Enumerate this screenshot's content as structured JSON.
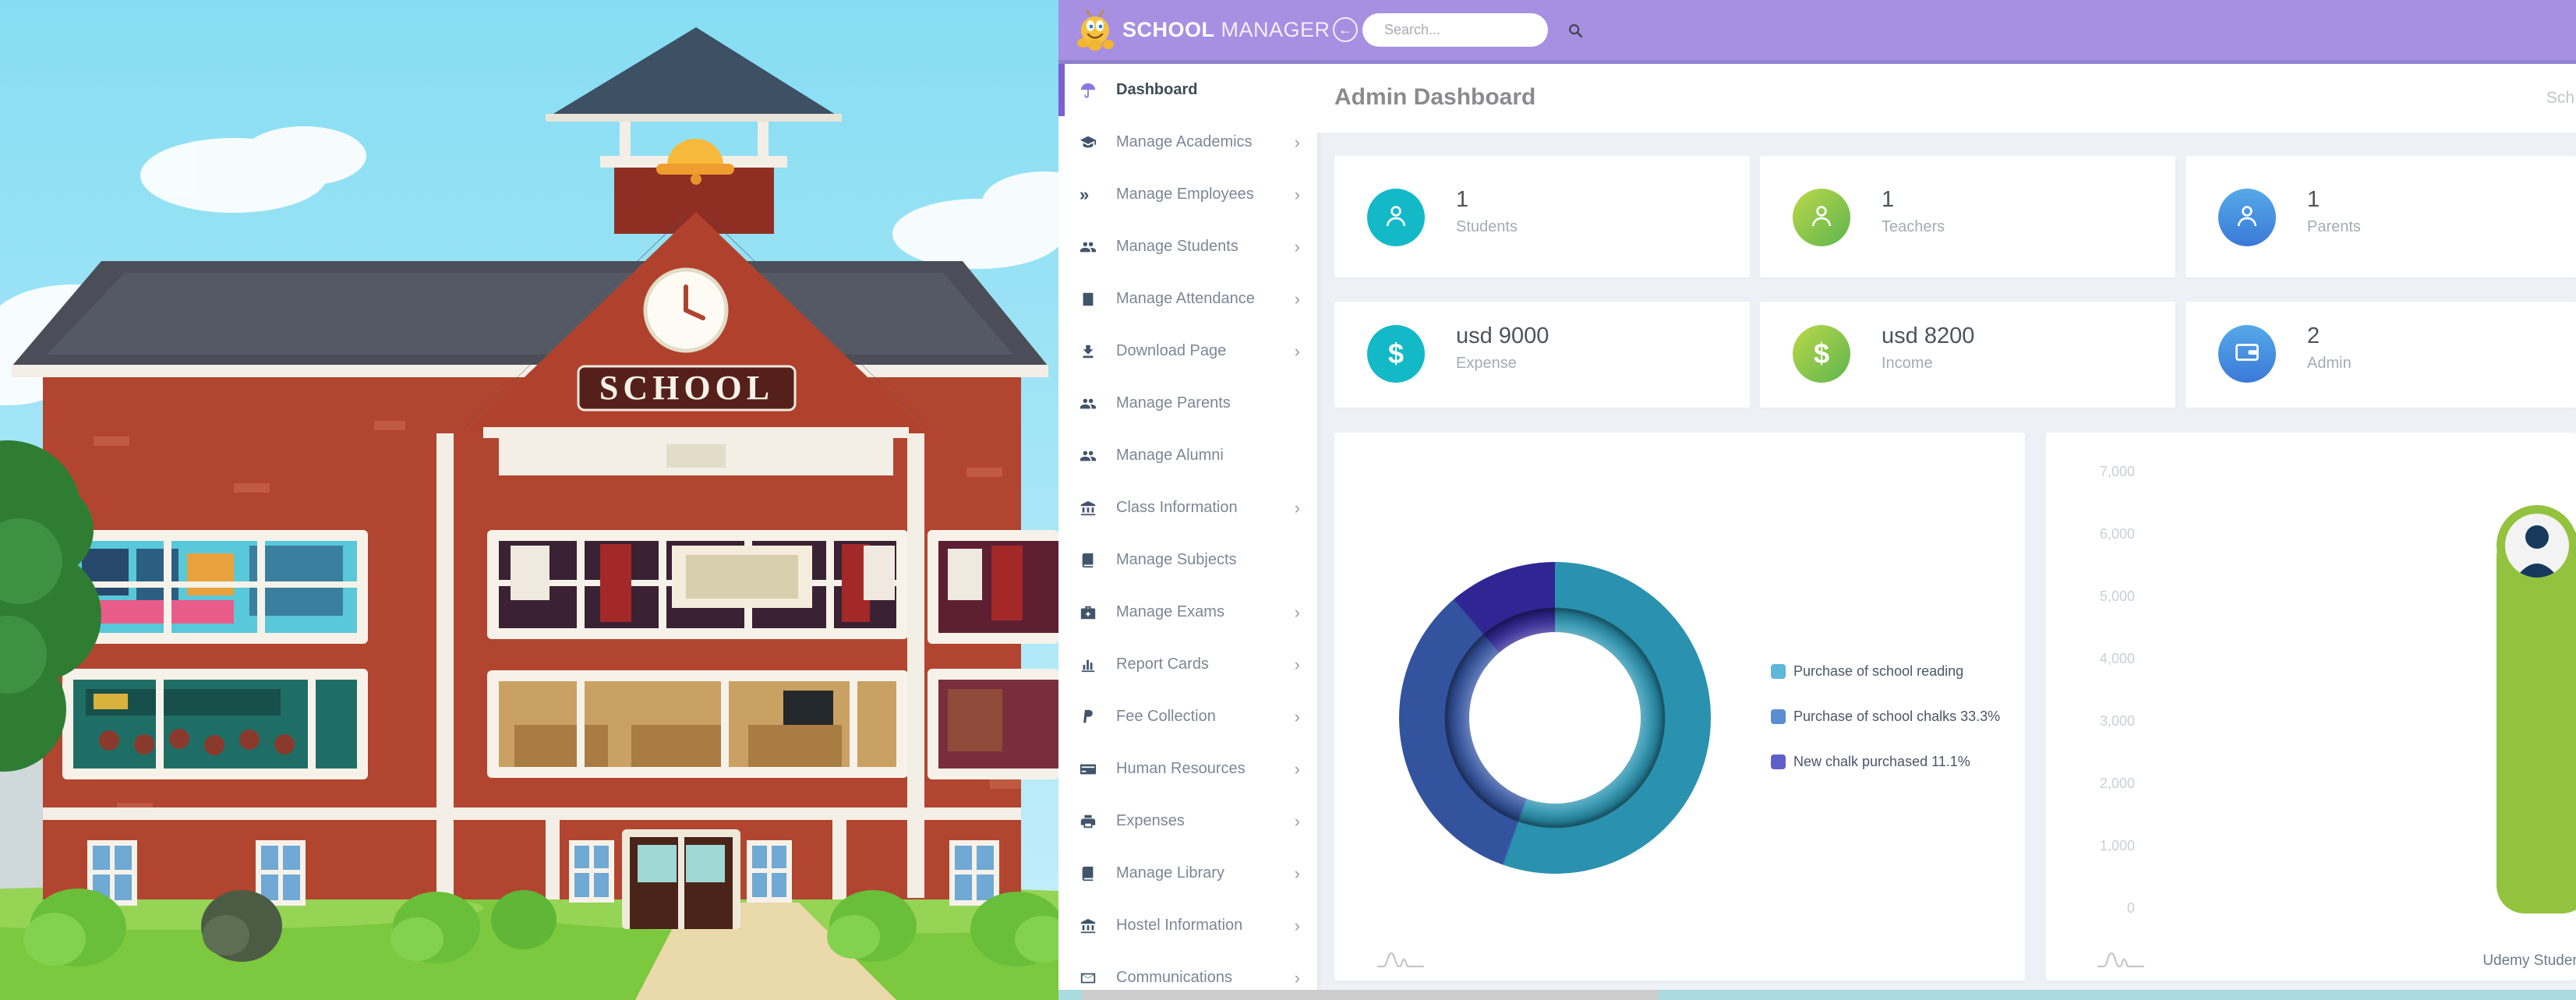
{
  "header": {
    "logo_primary": "SCHOOL",
    "logo_secondary": "MANAGER",
    "search_placeholder": "Search..."
  },
  "page": {
    "title": "Admin Dashboard",
    "top_right_truncated": "Sch"
  },
  "illustration": {
    "sign_text": "SCHOOL"
  },
  "sidebar": {
    "items": [
      {
        "label": "Dashboard",
        "icon": "dashboard",
        "chevron": false,
        "active": true
      },
      {
        "label": "Manage Academics",
        "icon": "graduation-cap",
        "chevron": true,
        "active": false
      },
      {
        "label": "Manage Employees",
        "icon": "double-chevron",
        "chevron": true,
        "active": false
      },
      {
        "label": "Manage Students",
        "icon": "users",
        "chevron": true,
        "active": false
      },
      {
        "label": "Manage Attendance",
        "icon": "clinic-building",
        "chevron": true,
        "active": false
      },
      {
        "label": "Download Page",
        "icon": "download",
        "chevron": true,
        "active": false
      },
      {
        "label": "Manage Parents",
        "icon": "users",
        "chevron": false,
        "active": false
      },
      {
        "label": "Manage Alumni",
        "icon": "users",
        "chevron": false,
        "active": false
      },
      {
        "label": "Class Information",
        "icon": "bank",
        "chevron": true,
        "active": false
      },
      {
        "label": "Manage Subjects",
        "icon": "book",
        "chevron": false,
        "active": false
      },
      {
        "label": "Manage Exams",
        "icon": "medkit",
        "chevron": true,
        "active": false
      },
      {
        "label": "Report Cards",
        "icon": "bar-chart",
        "chevron": true,
        "active": false
      },
      {
        "label": "Fee Collection",
        "icon": "paypal",
        "chevron": true,
        "active": false
      },
      {
        "label": "Human Resources",
        "icon": "credit-card",
        "chevron": true,
        "active": false
      },
      {
        "label": "Expenses",
        "icon": "printer",
        "chevron": true,
        "active": false
      },
      {
        "label": "Manage Library",
        "icon": "book",
        "chevron": true,
        "active": false
      },
      {
        "label": "Hostel Information",
        "icon": "bank",
        "chevron": true,
        "active": false
      },
      {
        "label": "Communications",
        "icon": "envelope",
        "chevron": true,
        "active": false
      }
    ]
  },
  "stats": {
    "cards": [
      {
        "value": "1",
        "label": "Students",
        "icon": "person",
        "accent": "teal"
      },
      {
        "value": "1",
        "label": "Teachers",
        "icon": "person",
        "accent": "green"
      },
      {
        "value": "1",
        "label": "Parents",
        "icon": "person",
        "accent": "blue"
      },
      {
        "value": "usd 9000",
        "label": "Expense",
        "icon": "dollar",
        "accent": "teal"
      },
      {
        "value": "usd 8200",
        "label": "Income",
        "icon": "dollar",
        "accent": "green"
      },
      {
        "value": "2",
        "label": "Admin",
        "icon": "wallet",
        "accent": "blue"
      }
    ]
  },
  "donut_card": {
    "legend": [
      {
        "label": "Purchase of school reading",
        "color": "#5fb7da"
      },
      {
        "label": "Purchase of school chalks 33.3%",
        "color": "#5c8cd2"
      },
      {
        "label": "New chalk purchased 11.1%",
        "color": "#5f5fca"
      }
    ]
  },
  "bar_card": {
    "y_ticks": [
      "7,000",
      "6,000",
      "5,000",
      "4,000",
      "3,000",
      "2,000",
      "1,000",
      "0"
    ],
    "footer_right": "Udemy Studen"
  },
  "colors": {
    "header_purple": "#a78fe2",
    "active_purple": "#7c5fd3",
    "stat_teal": "#14b9c8",
    "stat_green_start": "#bcd84a",
    "stat_green_end": "#5db54e",
    "stat_blue_start": "#55a9e8",
    "stat_blue_end": "#3b79d8",
    "donut_teal": "#2a92ae",
    "donut_blue": "#33539f",
    "donut_indigo": "#2f2693",
    "widget_green": "#93c33e",
    "scrollbar_track": "#a9dbe1"
  },
  "chart_data": [
    {
      "type": "pie",
      "title": "",
      "labels": [
        "Purchase of school reading",
        "Purchase of school chalks",
        "New chalk purchased"
      ],
      "values_percent": [
        55.6,
        33.3,
        11.1
      ],
      "colors": [
        "#5fb7da",
        "#5c8cd2",
        "#5f5fca"
      ],
      "legend_position": "right",
      "donut": true
    },
    {
      "type": "bar",
      "categories": [],
      "values": [],
      "title": "",
      "xlabel": "",
      "ylabel": "",
      "ylim": [
        0,
        7000
      ],
      "y_tick_values": [
        0,
        1000,
        2000,
        3000,
        4000,
        5000,
        6000,
        7000
      ],
      "grid": false,
      "note": "axis rendered, no bars visible"
    }
  ]
}
